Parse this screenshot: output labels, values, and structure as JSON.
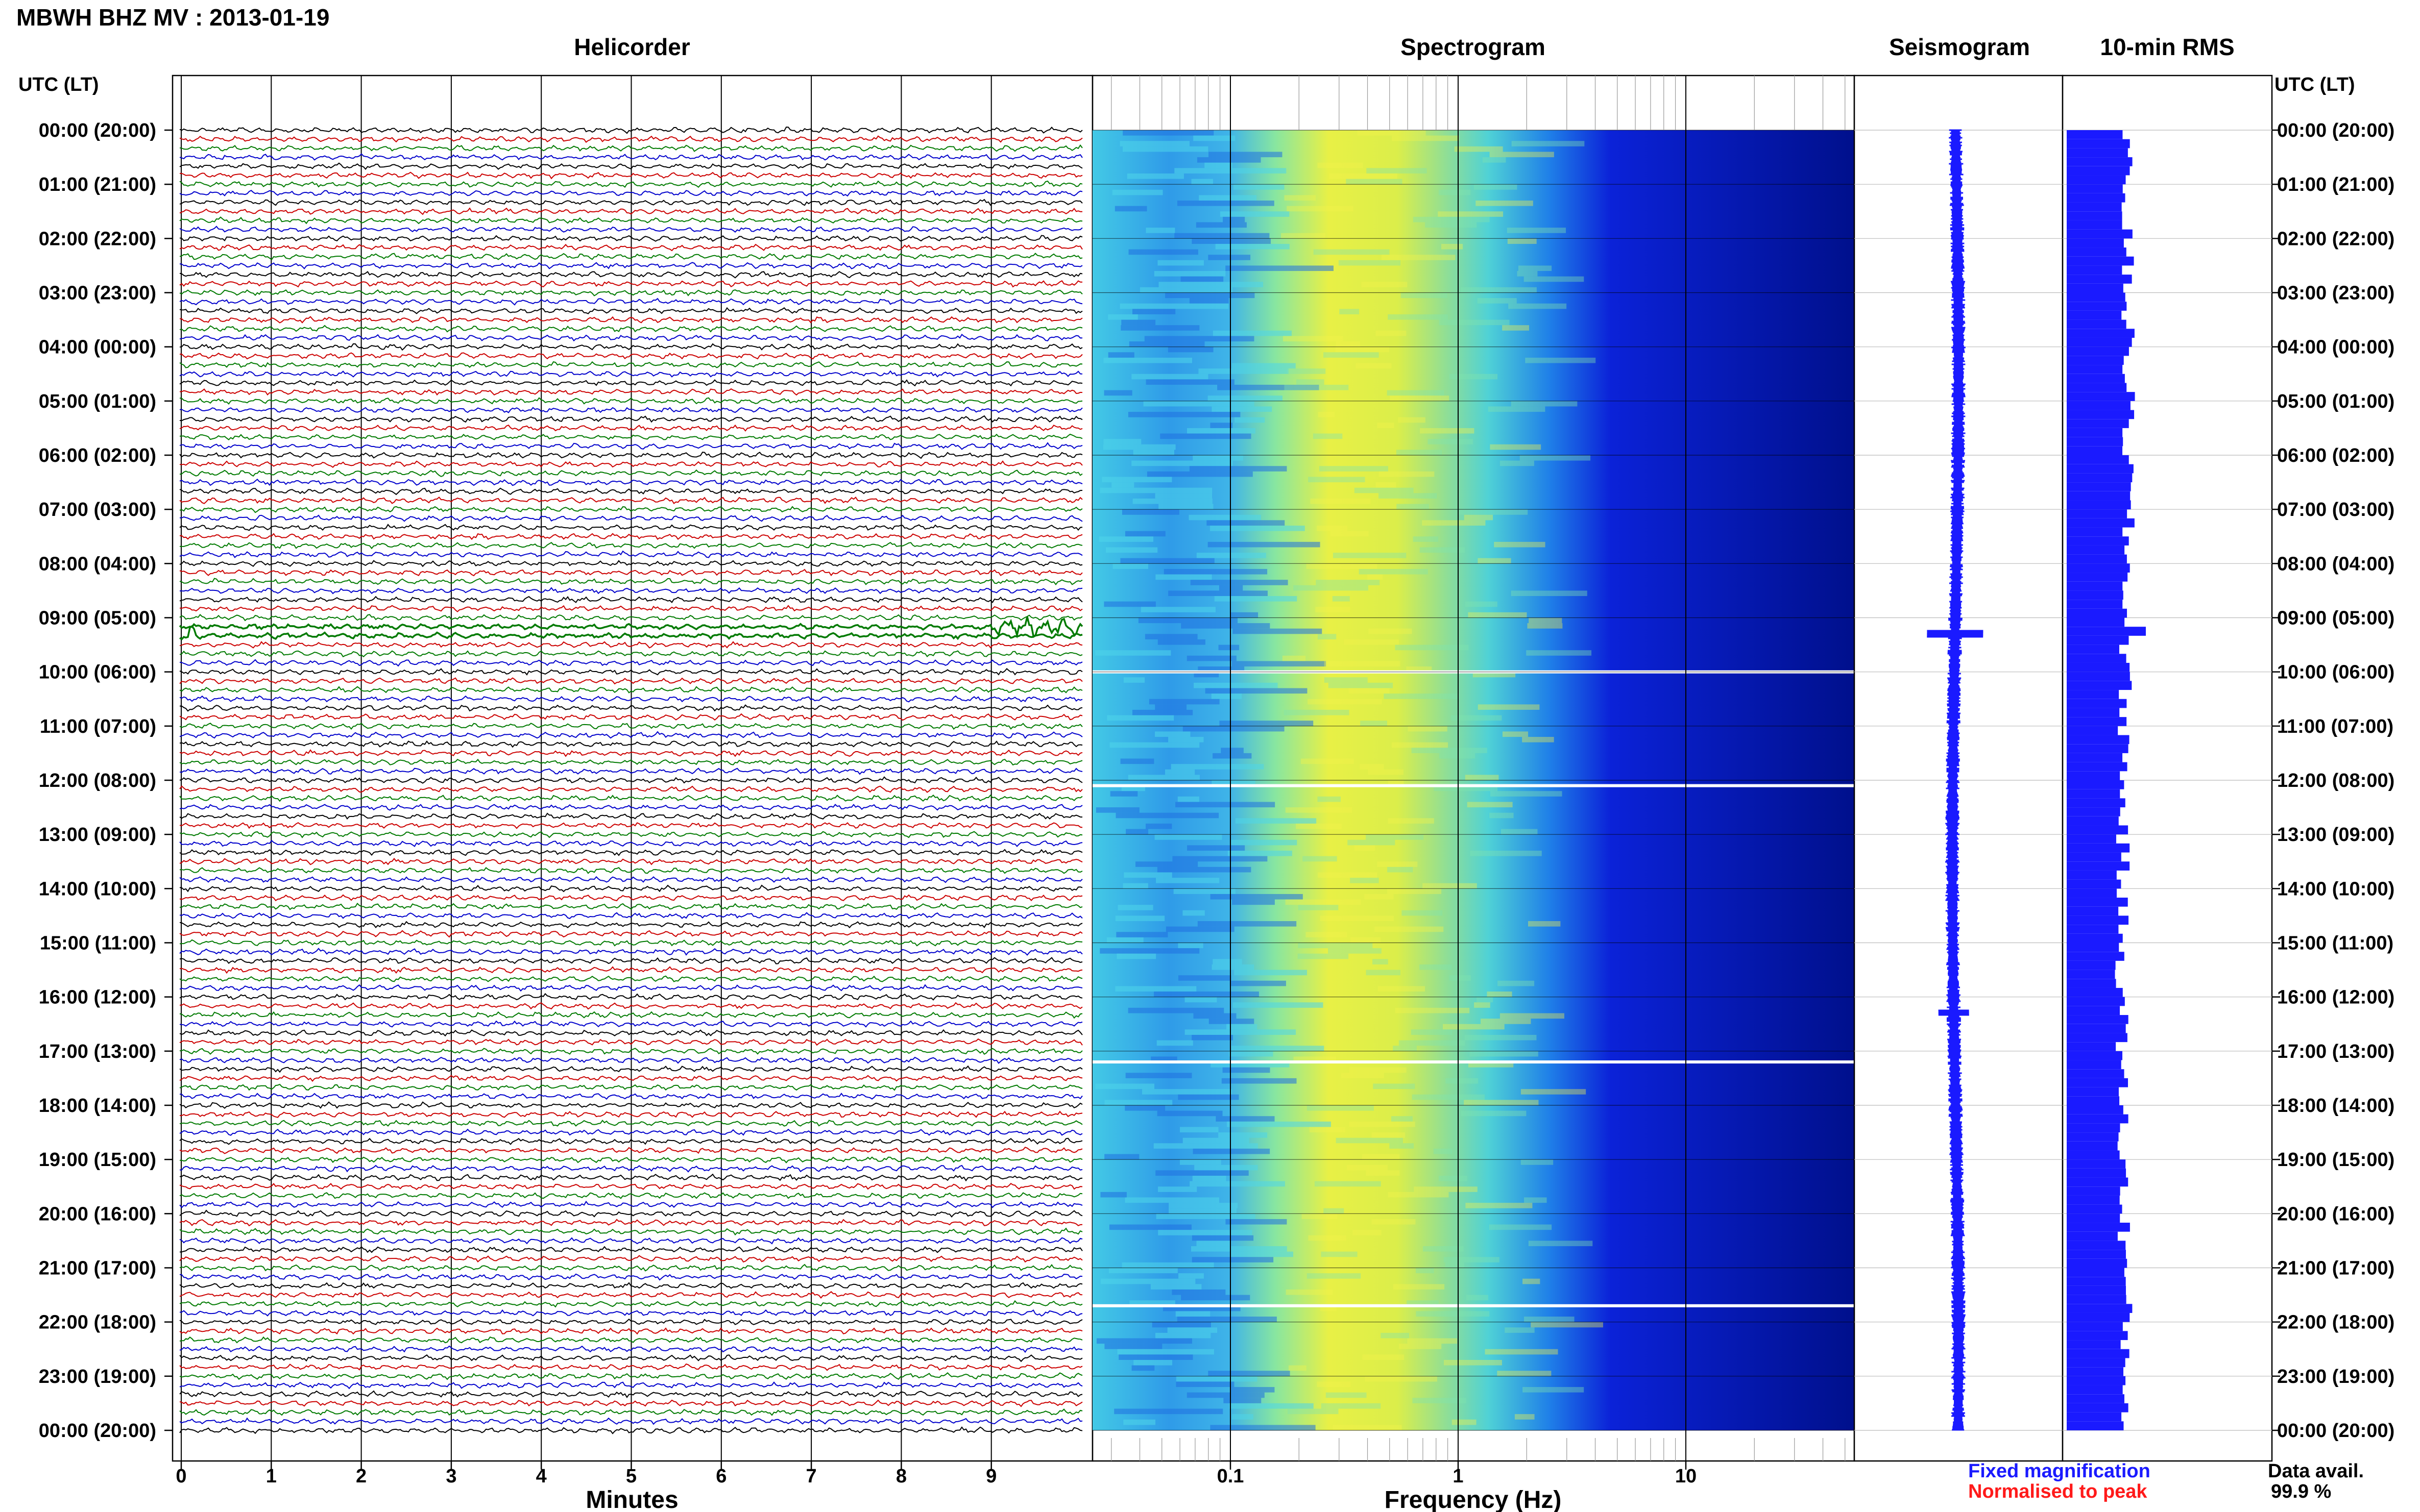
{
  "header": {
    "station_title": "MBWH BHZ MV : 2013-01-19",
    "time_axis_label": "UTC (LT)"
  },
  "panels": {
    "helicorder_title": "Helicorder",
    "spectrogram_title": "Spectrogram",
    "seismogram_title": "Seismogram",
    "rms_title": "10-min RMS"
  },
  "footer": {
    "fixed_magnification": "Fixed magnification",
    "normalised_to_peak": "Normalised to peak",
    "data_avail_label": "Data avail.",
    "data_avail_value": "99.9 %"
  },
  "colors": {
    "fixed": "#1a1aff",
    "normalised": "#ff1a1a",
    "trace_cycle": [
      "#000000",
      "#cc0000",
      "#007a00",
      "#0000cc"
    ],
    "rms_bar": "#1a1aff"
  },
  "chart_data": [
    {
      "type": "line",
      "name": "helicorder",
      "xlabel": "Minutes",
      "xlim": [
        0,
        10
      ],
      "x_ticks": [
        0,
        1,
        2,
        3,
        4,
        5,
        6,
        7,
        8,
        9
      ],
      "y_ticks_utc": [
        "00:00 (20:00)",
        "01:00 (21:00)",
        "02:00 (22:00)",
        "03:00 (23:00)",
        "04:00 (00:00)",
        "05:00 (01:00)",
        "06:00 (02:00)",
        "07:00 (03:00)",
        "08:00 (04:00)",
        "09:00 (05:00)",
        "10:00 (06:00)",
        "11:00 (07:00)",
        "12:00 (08:00)",
        "13:00 (09:00)",
        "14:00 (10:00)",
        "15:00 (11:00)",
        "16:00 (12:00)",
        "17:00 (13:00)",
        "18:00 (14:00)",
        "19:00 (15:00)",
        "20:00 (16:00)",
        "21:00 (17:00)",
        "22:00 (18:00)",
        "23:00 (19:00)",
        "00:00 (20:00)"
      ],
      "rows_per_hour": 6,
      "events": [
        {
          "row": 55,
          "minute_start": 9.0,
          "minute_end": 9.95,
          "amplitude": "high"
        },
        {
          "row": 56,
          "minute_start": 0.0,
          "minute_end": 0.25,
          "amplitude": "high"
        }
      ]
    },
    {
      "type": "heatmap",
      "name": "spectrogram",
      "xlabel": "Frequency (Hz)",
      "x_scale": "log",
      "xlim": [
        0.02,
        50
      ],
      "x_ticks": [
        0.1,
        1,
        10
      ],
      "data_gaps_hours": [
        10.0,
        12.1,
        17.2,
        21.7
      ]
    },
    {
      "type": "line",
      "name": "seismogram"
    },
    {
      "type": "bar",
      "name": "10-min RMS",
      "spike_hours": [
        9.2
      ]
    }
  ]
}
